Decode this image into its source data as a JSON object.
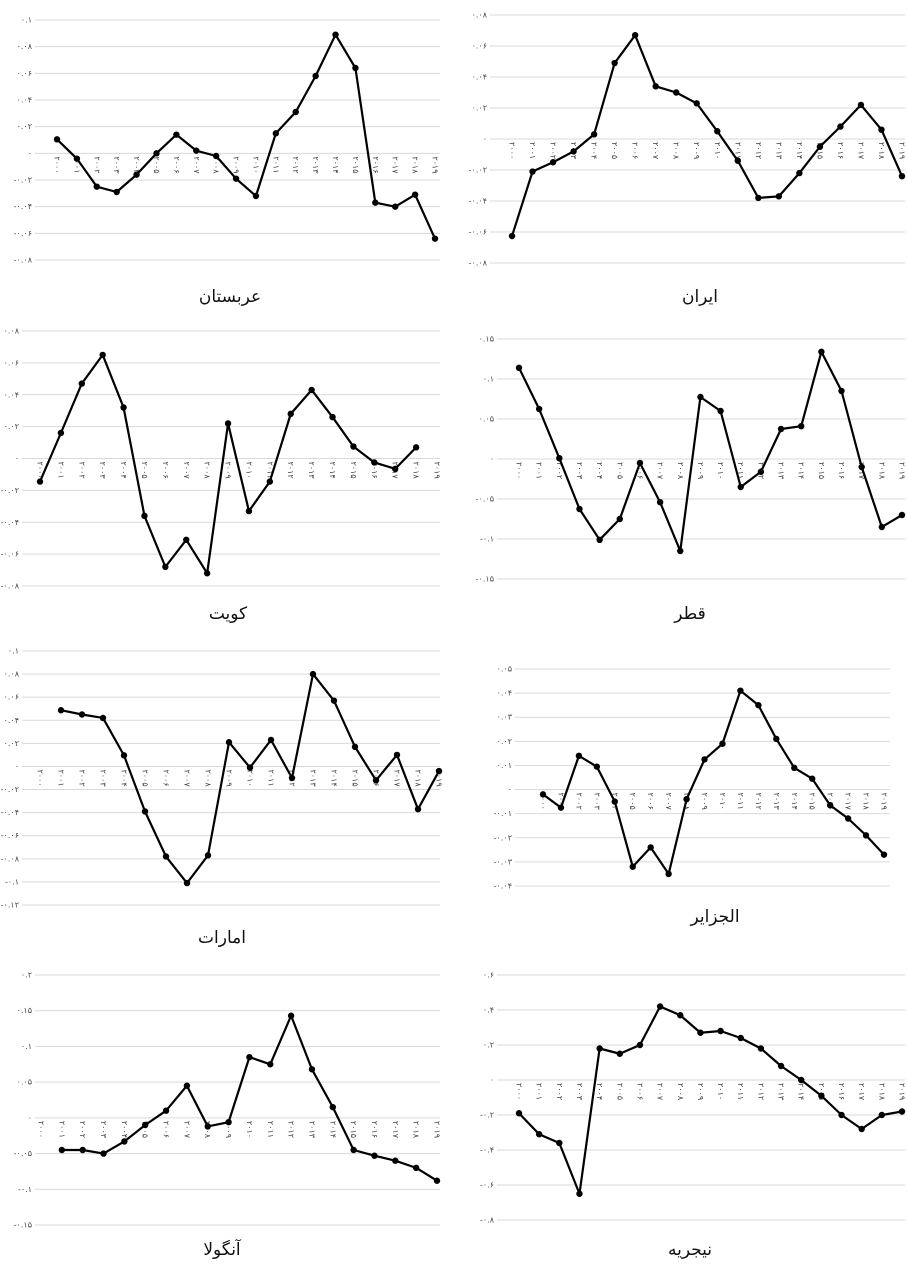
{
  "chart_data": [
    {
      "type": "line",
      "title": "عربستان",
      "color": "#000000",
      "grid": true,
      "categories": [
        "۲۰۰۰",
        "۲۰۰۱",
        "۲۰۰۲",
        "۲۰۰۳",
        "۲۰۰۴",
        "۲۰۰۵",
        "۲۰۰۶",
        "۲۰۰۷",
        "۲۰۰۸",
        "۲۰۰۹",
        "۲۰۱۰",
        "۲۰۱۱",
        "۲۰۱۲",
        "۲۰۱۳",
        "۲۰۱۴",
        "۲۰۱۵",
        "۲۰۱۶",
        "۲۰۱۷",
        "۲۰۱۸",
        "۲۰۱۹"
      ],
      "values": [
        0.0105,
        -0.004,
        -0.025,
        -0.029,
        -0.016,
        0,
        0.014,
        0.002,
        -0.002,
        -0.019,
        -0.032,
        0.015,
        0.031,
        0.058,
        0.089,
        0.064,
        -0.037,
        -0.04,
        -0.031,
        -0.064
      ],
      "ylim": [
        -0.08,
        0.1
      ],
      "yticks": [
        {
          "value": 0.1,
          "label": "۰.۱"
        },
        {
          "value": 0.08,
          "label": "۰.۰۸"
        },
        {
          "value": 0.06,
          "label": "۰.۰۶"
        },
        {
          "value": 0.04,
          "label": "۰.۰۴"
        },
        {
          "value": 0.02,
          "label": "۰.۰۲"
        },
        {
          "value": 0,
          "label": "۰"
        },
        {
          "value": -0.02,
          "label": "-۰.۰۲"
        },
        {
          "value": -0.04,
          "label": "-۰.۰۴"
        },
        {
          "value": -0.06,
          "label": "-۰.۰۶"
        },
        {
          "value": -0.08,
          "label": "-۰.۰۸"
        }
      ]
    },
    {
      "type": "line",
      "title": "ایران",
      "color": "#000000",
      "grid": true,
      "categories": [
        "۲۰۰۰",
        "۲۰۰۱",
        "۲۰۰۲",
        "۲۰۰۳",
        "۲۰۰۴",
        "۲۰۰۵",
        "۲۰۰۶",
        "۲۰۰۷",
        "۲۰۰۸",
        "۲۰۰۹",
        "۲۰۱۰",
        "۲۰۱۱",
        "۲۰۱۲",
        "۲۰۱۳",
        "۲۰۱۴",
        "۲۰۱۵",
        "۲۰۱۶",
        "۲۰۱۷",
        "۲۰۱۸",
        "۲۰۱۹"
      ],
      "values": [
        -0.0626,
        -0.021,
        -0.015,
        -0.008,
        0.003,
        0.049,
        0.067,
        0.034,
        0.03,
        0.023,
        0.005,
        -0.014,
        -0.038,
        -0.037,
        -0.022,
        -0.005,
        0.008,
        0.022,
        0.006,
        -0.024
      ],
      "ylim": [
        -0.08,
        0.08
      ],
      "yticks": [
        {
          "value": 0.08,
          "label": "۰.۰۸"
        },
        {
          "value": 0.06,
          "label": "۰.۰۶"
        },
        {
          "value": 0.04,
          "label": "۰.۰۴"
        },
        {
          "value": 0.02,
          "label": "۰.۰۲"
        },
        {
          "value": 0,
          "label": "۰"
        },
        {
          "value": -0.02,
          "label": "-۰.۰۲"
        },
        {
          "value": -0.04,
          "label": "-۰.۰۴"
        },
        {
          "value": -0.06,
          "label": "-۰.۰۶"
        },
        {
          "value": -0.08,
          "label": "-۰.۰۸"
        }
      ]
    },
    {
      "type": "line",
      "title": "کویت",
      "color": "#000000",
      "grid": true,
      "categories": [
        "۲۰۰۰",
        "۲۰۰۱",
        "۲۰۰۲",
        "۲۰۰۳",
        "۲۰۰۴",
        "۲۰۰۵",
        "۲۰۰۶",
        "۲۰۰۷",
        "۲۰۰۸",
        "۲۰۰۹",
        "۲۰۱۰",
        "۲۰۱۱",
        "۲۰۱۲",
        "۲۰۱۳",
        "۲۰۱۴",
        "۲۰۱۵",
        "۲۰۱۶",
        "۲۰۱۷",
        "۲۰۱۸",
        "۲۰۱۹"
      ],
      "values": [
        -0.0145,
        0.016,
        0.047,
        0.065,
        0.032,
        -0.036,
        -0.068,
        -0.051,
        -0.072,
        0.022,
        -0.033,
        -0.0145,
        0.028,
        0.043,
        0.026,
        0.0075,
        -0.0025,
        -0.0065,
        0.007,
        null
      ],
      "ylim": [
        -0.08,
        0.08
      ],
      "yticks": [
        {
          "value": 0.08,
          "label": "۰.۰۸"
        },
        {
          "value": 0.06,
          "label": "۰.۰۶"
        },
        {
          "value": 0.04,
          "label": "۰.۰۴"
        },
        {
          "value": 0.02,
          "label": "۰.۰۲"
        },
        {
          "value": 0,
          "label": "۰"
        },
        {
          "value": -0.02,
          "label": "-۰.۰۲"
        },
        {
          "value": -0.04,
          "label": "-۰.۰۴"
        },
        {
          "value": -0.06,
          "label": "-۰.۰۶"
        },
        {
          "value": -0.08,
          "label": "-۰.۰۸"
        }
      ]
    },
    {
      "type": "line",
      "title": "قطر",
      "color": "#000000",
      "grid": true,
      "categories": [
        "۲۰۰۰",
        "۲۰۰۱",
        "۲۰۰۲",
        "۲۰۰۳",
        "۲۰۰۴",
        "۲۰۰۵",
        "۲۰۰۶",
        "۲۰۰۷",
        "۲۰۰۸",
        "۲۰۰۹",
        "۲۰۱۰",
        "۲۰۱۱",
        "۲۰۱۲",
        "۲۰۱۳",
        "۲۰۱۴",
        "۲۰۱۵",
        "۲۰۱۶",
        "۲۰۱۷",
        "۲۰۱۸",
        "۲۰۱۹"
      ],
      "values": [
        0.114,
        0.0625,
        0.001,
        -0.0625,
        -0.101,
        -0.075,
        -0.005,
        -0.054,
        -0.115,
        0.0775,
        0.06,
        -0.035,
        -0.016,
        0.0375,
        0.041,
        0.134,
        0.085,
        -0.01,
        -0.085,
        -0.07
      ],
      "ylim": [
        -0.15,
        0.15
      ],
      "yticks": [
        {
          "value": 0.15,
          "label": "۰.۱۵"
        },
        {
          "value": 0.1,
          "label": "۰.۱"
        },
        {
          "value": 0.05,
          "label": "۰.۰۵"
        },
        {
          "value": 0,
          "label": "۰"
        },
        {
          "value": -0.05,
          "label": "-۰.۰۵"
        },
        {
          "value": -0.1,
          "label": "-۰.۱"
        },
        {
          "value": -0.15,
          "label": "-۰.۱۵"
        }
      ]
    },
    {
      "type": "line",
      "title": "امارات",
      "color": "#000000",
      "grid": true,
      "categories": [
        "۲۰۰۰",
        "۲۰۰۱",
        "۲۰۰۲",
        "۲۰۰۳",
        "۲۰۰۴",
        "۲۰۰۵",
        "۲۰۰۶",
        "۲۰۰۷",
        "۲۰۰۸",
        "۲۰۰۹",
        "۲۰۱۰",
        "۲۰۱۱",
        "۲۰۱۲",
        "۲۰۱۳",
        "۲۰۱۴",
        "۲۰۱۵",
        "۲۰۱۶",
        "۲۰۱۷",
        "۲۰۱۸",
        "۲۰۱۹"
      ],
      "values": [
        null,
        0.0487,
        0.045,
        0.042,
        0.0096,
        -0.039,
        -0.078,
        -0.101,
        -0.077,
        0.021,
        -0.001,
        0.023,
        -0.01,
        0.08,
        0.057,
        0.017,
        -0.012,
        0.01,
        -0.037,
        -0.004
      ],
      "ylim": [
        -0.12,
        0.1
      ],
      "yticks": [
        {
          "value": 0.1,
          "label": "۰.۱"
        },
        {
          "value": 0.08,
          "label": "۰.۰۸"
        },
        {
          "value": 0.06,
          "label": "۰.۰۶"
        },
        {
          "value": 0.04,
          "label": "۰.۰۴"
        },
        {
          "value": 0.02,
          "label": "۰.۰۲"
        },
        {
          "value": 0,
          "label": "۰"
        },
        {
          "value": -0.02,
          "label": "-۰.۰۲"
        },
        {
          "value": -0.04,
          "label": "-۰.۰۴"
        },
        {
          "value": -0.06,
          "label": "-۰.۰۶"
        },
        {
          "value": -0.08,
          "label": "-۰.۰۸"
        },
        {
          "value": -0.1,
          "label": "-۰.۱"
        },
        {
          "value": -0.12,
          "label": "-۰.۱۲"
        }
      ]
    },
    {
      "type": "line",
      "title": "الجزایر",
      "color": "#000000",
      "grid": true,
      "categories": [
        "۲۰۰۰",
        "۲۰۰۱",
        "۲۰۰۲",
        "۲۰۰۳",
        "۲۰۰۴",
        "۲۰۰۵",
        "۲۰۰۶",
        "۲۰۰۷",
        "۲۰۰۸",
        "۲۰۰۹",
        "۲۰۱۰",
        "۲۰۱۱",
        "۲۰۱۲",
        "۲۰۱۳",
        "۲۰۱۴",
        "۲۰۱۵",
        "۲۰۱۶",
        "۲۰۱۷",
        "۲۰۱۸",
        "۲۰۱۹"
      ],
      "values": [
        -0.002,
        -0.0075,
        0.014,
        0.0095,
        -0.005,
        -0.032,
        -0.024,
        -0.035,
        -0.004,
        0.0125,
        0.019,
        0.041,
        0.035,
        0.021,
        0.009,
        0.0045,
        -0.0065,
        -0.012,
        -0.019,
        -0.027
      ],
      "ylim": [
        -0.04,
        0.05
      ],
      "yticks": [
        {
          "value": 0.05,
          "label": "۰.۰۵"
        },
        {
          "value": 0.04,
          "label": "۰.۰۴"
        },
        {
          "value": 0.03,
          "label": "۰.۰۳"
        },
        {
          "value": 0.02,
          "label": "۰.۰۲"
        },
        {
          "value": 0.01,
          "label": "۰.۰۱"
        },
        {
          "value": 0,
          "label": "۰"
        },
        {
          "value": -0.01,
          "label": "-۰.۰۱"
        },
        {
          "value": -0.02,
          "label": "-۰.۰۲"
        },
        {
          "value": -0.03,
          "label": "-۰.۰۳"
        },
        {
          "value": -0.04,
          "label": "-۰.۰۴"
        }
      ]
    },
    {
      "type": "line",
      "title": "آنگولا",
      "color": "#000000",
      "grid": true,
      "categories": [
        "۲۰۰۰",
        "۲۰۰۱",
        "۲۰۰۲",
        "۲۰۰۳",
        "۲۰۰۴",
        "۲۰۰۵",
        "۲۰۰۶",
        "۲۰۰۷",
        "۲۰۰۸",
        "۲۰۰۹",
        "۲۰۱۰",
        "۲۰۱۱",
        "۲۰۱۲",
        "۲۰۱۳",
        "۲۰۱۴",
        "۲۰۱۵",
        "۲۰۱۶",
        "۲۰۱۷",
        "۲۰۱۸",
        "۲۰۱۹"
      ],
      "values": [
        null,
        -0.045,
        -0.045,
        -0.05,
        -0.033,
        -0.01,
        0.01,
        0.045,
        -0.012,
        -0.006,
        0.085,
        0.075,
        0.143,
        0.068,
        0.015,
        -0.045,
        -0.053,
        -0.06,
        -0.07,
        -0.088
      ],
      "ylim": [
        -0.15,
        0.2
      ],
      "yticks": [
        {
          "value": 0.2,
          "label": "۰.۲"
        },
        {
          "value": 0.15,
          "label": "۰.۱۵"
        },
        {
          "value": 0.1,
          "label": "۰.۱"
        },
        {
          "value": 0.05,
          "label": "۰.۰۵"
        },
        {
          "value": 0,
          "label": "۰"
        },
        {
          "value": -0.05,
          "label": "-۰.۰۵"
        },
        {
          "value": -0.1,
          "label": "-۰.۱"
        },
        {
          "value": -0.15,
          "label": "-۰.۱۵"
        }
      ]
    },
    {
      "type": "line",
      "title": "نیجریه",
      "color": "#000000",
      "grid": true,
      "categories": [
        "۲۰۰۰",
        "۲۰۰۱",
        "۲۰۰۲",
        "۲۰۰۳",
        "۲۰۰۴",
        "۲۰۰۵",
        "۲۰۰۶",
        "۲۰۰۷",
        "۲۰۰۸",
        "۲۰۰۹",
        "۲۰۱۰",
        "۲۰۱۱",
        "۲۰۱۲",
        "۲۰۱۳",
        "۲۰۱۴",
        "۲۰۱۵",
        "۲۰۱۶",
        "۲۰۱۷",
        "۲۰۱۸",
        "۲۰۱۹"
      ],
      "values": [
        -0.19,
        -0.31,
        -0.36,
        -0.65,
        0.18,
        0.15,
        0.2,
        0.42,
        0.37,
        0.27,
        0.28,
        0.24,
        0.18,
        0.08,
        0,
        -0.09,
        -0.2,
        -0.28,
        -0.2,
        -0.18
      ],
      "ylim": [
        -0.8,
        0.6
      ],
      "yticks": [
        {
          "value": 0.6,
          "label": "۰.۶"
        },
        {
          "value": 0.4,
          "label": "۰.۴"
        },
        {
          "value": 0.2,
          "label": "۰.۲"
        },
        {
          "value": 0,
          "label": "۰"
        },
        {
          "value": -0.2,
          "label": "-۰.۲"
        },
        {
          "value": -0.4,
          "label": "-۰.۴"
        },
        {
          "value": -0.6,
          "label": "-۰.۶"
        },
        {
          "value": -0.8,
          "label": "-۰.۸"
        }
      ]
    }
  ]
}
